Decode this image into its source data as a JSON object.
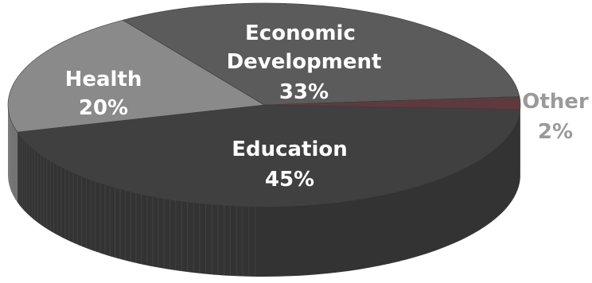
{
  "chart_data": {
    "type": "pie",
    "style": "3d",
    "slices": [
      {
        "label": "Education",
        "value": 45,
        "value_text": "45%",
        "color": "#404040",
        "label_color": "#ffffff"
      },
      {
        "label": "Health",
        "value": 20,
        "value_text": "20%",
        "color": "#8a8a8a",
        "label_color": "#ffffff"
      },
      {
        "label": "Economic Development",
        "value": 33,
        "value_text": "33%",
        "color": "#5b5b5b",
        "label_color": "#ffffff"
      },
      {
        "label": "Other",
        "value": 2,
        "value_text": "2%",
        "color": "#5e3a3e",
        "label_color": "#9a9a9a"
      }
    ],
    "legend": "none"
  }
}
